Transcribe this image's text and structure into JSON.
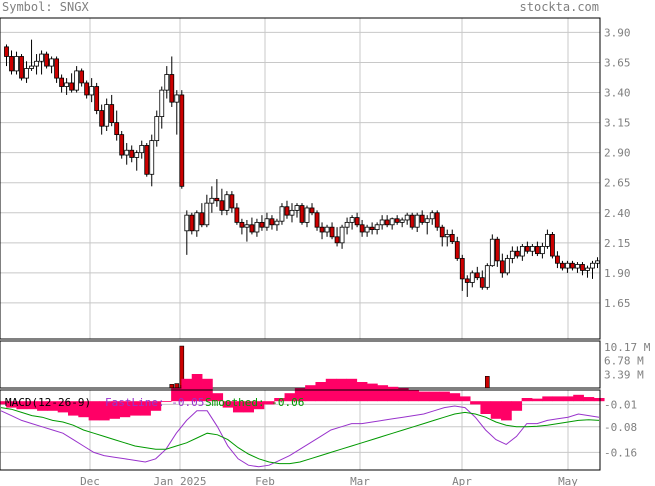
{
  "header": {
    "symbol": "Symbol: SNGX",
    "site": "stockta.com"
  },
  "colors": {
    "down_body": "#cc0000",
    "up_body": "#ffffff",
    "volume": "#cc0000",
    "histogram": "#ff0066",
    "macd_fast": "#9933cc",
    "macd_slow": "#009900",
    "grid": "#c8c8c8",
    "text": "#808080"
  },
  "chart_data": [
    {
      "type": "candlestick",
      "title": "",
      "y_ticks": [
        "3.90",
        "3.65",
        "3.40",
        "3.15",
        "2.90",
        "2.65",
        "2.40",
        "2.15",
        "1.90",
        "1.65"
      ],
      "ylim": [
        1.35,
        4.02
      ],
      "x_ticks": [
        "Dec",
        "Jan 2025",
        "Feb",
        "Mar",
        "Apr",
        "May"
      ],
      "grid": true,
      "note": "Daily OHLC candles, approx. Nov 2024 through May 2025",
      "ohlc": [
        [
          3.78,
          3.8,
          3.62,
          3.7
        ],
        [
          3.7,
          3.75,
          3.55,
          3.58
        ],
        [
          3.58,
          3.74,
          3.55,
          3.7
        ],
        [
          3.7,
          3.72,
          3.5,
          3.52
        ],
        [
          3.52,
          3.66,
          3.48,
          3.6
        ],
        [
          3.6,
          3.84,
          3.58,
          3.62
        ],
        [
          3.62,
          3.72,
          3.55,
          3.66
        ],
        [
          3.66,
          3.75,
          3.55,
          3.72
        ],
        [
          3.72,
          3.74,
          3.6,
          3.62
        ],
        [
          3.62,
          3.7,
          3.56,
          3.68
        ],
        [
          3.68,
          3.7,
          3.48,
          3.52
        ],
        [
          3.52,
          3.55,
          3.4,
          3.45
        ],
        [
          3.45,
          3.52,
          3.38,
          3.48
        ],
        [
          3.48,
          3.56,
          3.4,
          3.42
        ],
        [
          3.42,
          3.62,
          3.4,
          3.58
        ],
        [
          3.58,
          3.6,
          3.45,
          3.48
        ],
        [
          3.48,
          3.5,
          3.35,
          3.38
        ],
        [
          3.38,
          3.52,
          3.32,
          3.45
        ],
        [
          3.45,
          3.48,
          3.22,
          3.25
        ],
        [
          3.25,
          3.3,
          3.05,
          3.12
        ],
        [
          3.12,
          3.35,
          3.08,
          3.3
        ],
        [
          3.3,
          3.38,
          3.12,
          3.15
        ],
        [
          3.15,
          3.25,
          3.0,
          3.05
        ],
        [
          3.05,
          3.08,
          2.85,
          2.88
        ],
        [
          2.88,
          2.98,
          2.8,
          2.92
        ],
        [
          2.92,
          2.96,
          2.82,
          2.86
        ],
        [
          2.86,
          2.92,
          2.75,
          2.9
        ],
        [
          2.9,
          3.0,
          2.85,
          2.96
        ],
        [
          2.96,
          2.98,
          2.7,
          2.72
        ],
        [
          2.72,
          3.05,
          2.62,
          3.0
        ],
        [
          3.0,
          3.25,
          2.95,
          3.2
        ],
        [
          3.2,
          3.45,
          3.1,
          3.42
        ],
        [
          3.42,
          3.62,
          3.35,
          3.55
        ],
        [
          3.55,
          3.7,
          3.28,
          3.32
        ],
        [
          3.32,
          3.42,
          3.05,
          3.38
        ],
        [
          3.38,
          3.42,
          2.6,
          2.62
        ],
        [
          2.25,
          2.42,
          2.05,
          2.38
        ],
        [
          2.38,
          2.4,
          2.22,
          2.25
        ],
        [
          2.25,
          2.42,
          2.2,
          2.4
        ],
        [
          2.4,
          2.48,
          2.28,
          2.3
        ],
        [
          2.3,
          2.55,
          2.28,
          2.48
        ],
        [
          2.48,
          2.62,
          2.4,
          2.52
        ],
        [
          2.52,
          2.68,
          2.45,
          2.5
        ],
        [
          2.5,
          2.6,
          2.38,
          2.42
        ],
        [
          2.42,
          2.58,
          2.38,
          2.55
        ],
        [
          2.55,
          2.58,
          2.4,
          2.44
        ],
        [
          2.44,
          2.48,
          2.3,
          2.32
        ],
        [
          2.32,
          2.35,
          2.22,
          2.28
        ],
        [
          2.28,
          2.34,
          2.16,
          2.3
        ],
        [
          2.3,
          2.36,
          2.22,
          2.24
        ],
        [
          2.24,
          2.35,
          2.2,
          2.32
        ],
        [
          2.32,
          2.38,
          2.25,
          2.28
        ],
        [
          2.28,
          2.4,
          2.25,
          2.35
        ],
        [
          2.35,
          2.38,
          2.26,
          2.3
        ],
        [
          2.3,
          2.35,
          2.25,
          2.33
        ],
        [
          2.33,
          2.48,
          2.3,
          2.45
        ],
        [
          2.45,
          2.5,
          2.35,
          2.38
        ],
        [
          2.38,
          2.48,
          2.32,
          2.42
        ],
        [
          2.42,
          2.48,
          2.36,
          2.46
        ],
        [
          2.46,
          2.48,
          2.3,
          2.32
        ],
        [
          2.32,
          2.46,
          2.28,
          2.44
        ],
        [
          2.44,
          2.48,
          2.38,
          2.4
        ],
        [
          2.4,
          2.42,
          2.25,
          2.28
        ],
        [
          2.28,
          2.32,
          2.18,
          2.24
        ],
        [
          2.24,
          2.3,
          2.2,
          2.28
        ],
        [
          2.28,
          2.32,
          2.18,
          2.2
        ],
        [
          2.2,
          2.28,
          2.12,
          2.15
        ],
        [
          2.15,
          2.3,
          2.1,
          2.28
        ],
        [
          2.28,
          2.36,
          2.22,
          2.32
        ],
        [
          2.32,
          2.38,
          2.26,
          2.36
        ],
        [
          2.36,
          2.4,
          2.28,
          2.3
        ],
        [
          2.3,
          2.34,
          2.2,
          2.24
        ],
        [
          2.24,
          2.3,
          2.2,
          2.28
        ],
        [
          2.28,
          2.32,
          2.22,
          2.26
        ],
        [
          2.26,
          2.32,
          2.22,
          2.3
        ],
        [
          2.3,
          2.38,
          2.26,
          2.34
        ],
        [
          2.34,
          2.38,
          2.28,
          2.3
        ],
        [
          2.3,
          2.36,
          2.26,
          2.35
        ],
        [
          2.35,
          2.38,
          2.3,
          2.32
        ],
        [
          2.32,
          2.36,
          2.28,
          2.34
        ],
        [
          2.34,
          2.4,
          2.3,
          2.38
        ],
        [
          2.38,
          2.4,
          2.26,
          2.28
        ],
        [
          2.28,
          2.4,
          2.24,
          2.38
        ],
        [
          2.38,
          2.42,
          2.3,
          2.32
        ],
        [
          2.32,
          2.38,
          2.22,
          2.35
        ],
        [
          2.35,
          2.42,
          2.3,
          2.4
        ],
        [
          2.4,
          2.42,
          2.25,
          2.28
        ],
        [
          2.28,
          2.3,
          2.12,
          2.2
        ],
        [
          2.2,
          2.26,
          2.12,
          2.22
        ],
        [
          2.22,
          2.26,
          2.14,
          2.16
        ],
        [
          2.16,
          2.2,
          2.0,
          2.02
        ],
        [
          2.02,
          2.05,
          1.75,
          1.85
        ],
        [
          1.85,
          1.88,
          1.7,
          1.82
        ],
        [
          1.82,
          1.92,
          1.78,
          1.9
        ],
        [
          1.9,
          1.95,
          1.84,
          1.86
        ],
        [
          1.86,
          1.92,
          1.76,
          1.78
        ],
        [
          1.78,
          1.98,
          1.76,
          1.96
        ],
        [
          1.96,
          2.22,
          1.95,
          2.18
        ],
        [
          2.18,
          2.2,
          1.95,
          2.0
        ],
        [
          2.0,
          2.06,
          1.86,
          1.9
        ],
        [
          1.9,
          2.05,
          1.88,
          2.02
        ],
        [
          2.02,
          2.12,
          1.98,
          2.08
        ],
        [
          2.08,
          2.12,
          2.02,
          2.04
        ],
        [
          2.04,
          2.14,
          2.0,
          2.12
        ],
        [
          2.12,
          2.16,
          2.06,
          2.08
        ],
        [
          2.08,
          2.14,
          2.04,
          2.12
        ],
        [
          2.12,
          2.16,
          2.04,
          2.06
        ],
        [
          2.06,
          2.15,
          2.02,
          2.12
        ],
        [
          2.12,
          2.26,
          2.1,
          2.22
        ],
        [
          2.22,
          2.24,
          2.02,
          2.04
        ],
        [
          2.04,
          2.08,
          1.94,
          1.98
        ],
        [
          1.98,
          2.0,
          1.92,
          1.94
        ],
        [
          1.94,
          2.0,
          1.9,
          1.98
        ],
        [
          1.98,
          2.0,
          1.92,
          1.94
        ],
        [
          1.94,
          1.99,
          1.9,
          1.97
        ],
        [
          1.97,
          1.99,
          1.88,
          1.92
        ],
        [
          1.92,
          1.96,
          1.86,
          1.94
        ],
        [
          1.94,
          2.0,
          1.85,
          1.98
        ],
        [
          1.98,
          2.03,
          1.94,
          2.0
        ]
      ]
    },
    {
      "type": "bar",
      "title": "",
      "y_ticks": [
        "10.17 M",
        "6.78 M",
        "3.39 M"
      ],
      "ylim": [
        0,
        10.17
      ],
      "unit": "M",
      "bars": [
        {
          "candle": 35,
          "value": 10.4
        },
        {
          "candle": 35,
          "value": 0.5
        },
        {
          "candle": 33,
          "value": 0.9
        },
        {
          "candle": 34,
          "value": 1.1
        },
        {
          "candle": 96,
          "value": 2.9
        }
      ]
    },
    {
      "type": "line",
      "title": "MACD(12-26-9)",
      "legend": [
        "FastLine: -0.05",
        "Smoothed: -0.06"
      ],
      "y_ticks": [
        "-0.01",
        "-0.08",
        "-0.16"
      ],
      "ylim": [
        -0.215,
        0.035
      ],
      "series": [
        {
          "name": "FastLine",
          "values": [
            -0.03,
            -0.045,
            -0.06,
            -0.07,
            -0.08,
            -0.09,
            -0.1,
            -0.12,
            -0.14,
            -0.16,
            -0.17,
            -0.175,
            -0.18,
            -0.185,
            -0.19,
            -0.18,
            -0.15,
            -0.1,
            -0.06,
            -0.03,
            -0.03,
            -0.08,
            -0.14,
            -0.18,
            -0.2,
            -0.205,
            -0.2,
            -0.185,
            -0.17,
            -0.15,
            -0.13,
            -0.11,
            -0.09,
            -0.08,
            -0.07,
            -0.07,
            -0.065,
            -0.06,
            -0.055,
            -0.05,
            -0.045,
            -0.04,
            -0.03,
            -0.02,
            -0.015,
            -0.02,
            -0.05,
            -0.09,
            -0.12,
            -0.135,
            -0.11,
            -0.07,
            -0.07,
            -0.06,
            -0.055,
            -0.05,
            -0.04,
            -0.045,
            -0.05
          ]
        },
        {
          "name": "Smoothed",
          "values": [
            -0.02,
            -0.025,
            -0.035,
            -0.045,
            -0.05,
            -0.06,
            -0.065,
            -0.075,
            -0.09,
            -0.1,
            -0.11,
            -0.12,
            -0.13,
            -0.14,
            -0.145,
            -0.15,
            -0.15,
            -0.14,
            -0.13,
            -0.115,
            -0.1,
            -0.105,
            -0.12,
            -0.145,
            -0.165,
            -0.18,
            -0.19,
            -0.195,
            -0.195,
            -0.19,
            -0.18,
            -0.17,
            -0.16,
            -0.15,
            -0.14,
            -0.13,
            -0.12,
            -0.11,
            -0.1,
            -0.09,
            -0.08,
            -0.07,
            -0.06,
            -0.05,
            -0.04,
            -0.035,
            -0.04,
            -0.05,
            -0.065,
            -0.075,
            -0.08,
            -0.08,
            -0.078,
            -0.075,
            -0.07,
            -0.065,
            -0.06,
            -0.058,
            -0.06
          ]
        },
        {
          "name": "Histogram",
          "values": [
            -0.01,
            -0.02,
            -0.025,
            -0.025,
            -0.03,
            -0.03,
            -0.035,
            -0.045,
            -0.05,
            -0.06,
            -0.06,
            -0.055,
            -0.05,
            -0.045,
            -0.045,
            -0.03,
            0,
            0.04,
            0.07,
            0.085,
            0.07,
            0.025,
            -0.02,
            -0.035,
            -0.035,
            -0.025,
            -0.01,
            0.01,
            0.025,
            0.04,
            0.05,
            0.06,
            0.07,
            0.07,
            0.07,
            0.06,
            0.055,
            0.05,
            0.045,
            0.04,
            0.035,
            0.03,
            0.03,
            0.03,
            0.025,
            0.015,
            -0.01,
            -0.04,
            -0.055,
            -0.06,
            -0.03,
            0.01,
            0.008,
            0.015,
            0.015,
            0.015,
            0.02,
            0.013,
            0.01
          ]
        }
      ]
    }
  ]
}
